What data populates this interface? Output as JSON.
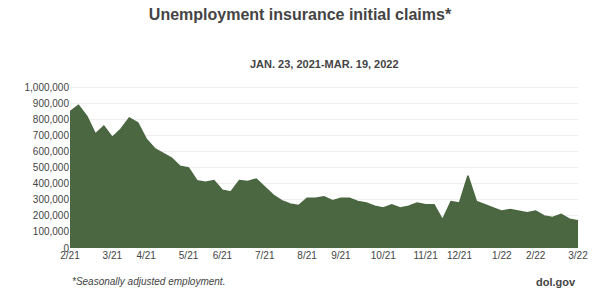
{
  "chart_data": {
    "type": "area",
    "title": "Unemployment insurance initial claims*",
    "subtitle": "JAN. 23, 2021-MAR. 19, 2022",
    "annotations": [
      "*Seasonally adjusted employment.",
      "dol.gov"
    ],
    "color": "#4a6741",
    "grid": true,
    "categories": [
      "2/21",
      null,
      null,
      null,
      null,
      "3/21",
      null,
      null,
      null,
      "4/21",
      null,
      null,
      null,
      null,
      "5/21",
      null,
      null,
      null,
      "6/21",
      null,
      null,
      null,
      null,
      "7/21",
      null,
      null,
      null,
      null,
      "8/21",
      null,
      null,
      null,
      "9/21",
      null,
      null,
      null,
      null,
      "10/21",
      null,
      null,
      null,
      null,
      "11/21",
      null,
      null,
      null,
      "12/21",
      null,
      null,
      null,
      null,
      "1/22",
      null,
      null,
      null,
      "2/22",
      null,
      null,
      null,
      null,
      "3/22"
    ],
    "values": [
      850000,
      890000,
      820000,
      710000,
      760000,
      690000,
      740000,
      810000,
      780000,
      680000,
      620000,
      590000,
      560000,
      510000,
      500000,
      420000,
      410000,
      420000,
      360000,
      350000,
      420000,
      415000,
      430000,
      380000,
      330000,
      295000,
      275000,
      265000,
      310000,
      310000,
      320000,
      295000,
      310000,
      310000,
      290000,
      280000,
      260000,
      250000,
      270000,
      250000,
      260000,
      280000,
      270000,
      270000,
      175000,
      290000,
      280000,
      450000,
      290000,
      270000,
      250000,
      230000,
      240000,
      230000,
      220000,
      230000,
      200000,
      190000,
      210000,
      180000,
      170000
    ],
    "ylim": [
      0,
      1060000
    ],
    "yticks": [
      0,
      {
        "value": 100000,
        "label": "100,000"
      },
      {
        "value": 200000,
        "label": "200,000"
      },
      {
        "value": 300000,
        "label": "300,000"
      },
      {
        "value": 400000,
        "label": "400,000"
      },
      {
        "value": 500000,
        "label": "500,000"
      },
      {
        "value": 600000,
        "label": "600,000"
      },
      {
        "value": 700000,
        "label": "700,000"
      },
      {
        "value": 800000,
        "label": "800,000"
      },
      {
        "value": 900000,
        "label": "900,000"
      },
      {
        "value": 1000000,
        "label": "1,000,000"
      }
    ]
  }
}
